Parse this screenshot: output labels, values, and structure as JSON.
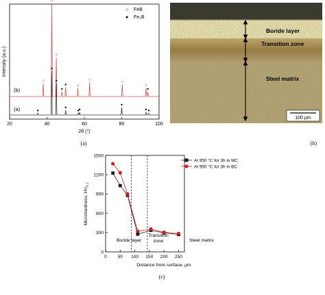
{
  "chart_data": [
    {
      "type": "line",
      "panel_label": "(a)",
      "xlabel": "2θ (°)",
      "ylabel": "Intensity (a.u.)",
      "xlim": [
        20,
        100
      ],
      "x_ticks": [
        "20",
        "40",
        "60",
        "80",
        "100"
      ],
      "legend": [
        {
          "symbol": "○",
          "name": "FeB"
        },
        {
          "symbol": "●",
          "name": "Fe₂B"
        }
      ],
      "legend_position": "top-right",
      "series": [
        {
          "name": "(b)",
          "color": "#e05050",
          "peaks": [
            {
              "x": 38.0,
              "h": 0.14,
              "mark": "○"
            },
            {
              "x": 42.6,
              "h": 1.0,
              "mark": "○"
            },
            {
              "x": 45.0,
              "h": 0.42,
              "mark": "○"
            },
            {
              "x": 48.0,
              "h": 0.05,
              "mark": "●"
            },
            {
              "x": 50.0,
              "h": 0.1,
              "mark": "●"
            },
            {
              "x": 56.5,
              "h": 0.09,
              "mark": "○"
            },
            {
              "x": 62.8,
              "h": 0.15,
              "mark": "○"
            },
            {
              "x": 80.3,
              "h": 0.13,
              "mark": "○"
            },
            {
              "x": 93.0,
              "h": 0.09,
              "mark": "○"
            },
            {
              "x": 94.0,
              "h": 0.05,
              "mark": "●"
            }
          ]
        },
        {
          "name": "(a)",
          "color": "#333333",
          "peaks": [
            {
              "x": 35.1,
              "h": 0.02,
              "mark": "●"
            },
            {
              "x": 42.5,
              "h": 0.47,
              "mark": "●"
            },
            {
              "x": 45.0,
              "h": 0.34,
              "mark": "●"
            },
            {
              "x": 50.0,
              "h": 0.05,
              "mark": "●"
            },
            {
              "x": 56.7,
              "h": 0.02,
              "mark": "●"
            },
            {
              "x": 57.5,
              "h": 0.03,
              "mark": "●"
            },
            {
              "x": 80.0,
              "h": 0.08,
              "mark": "●"
            },
            {
              "x": 93.0,
              "h": 0.03,
              "mark": "●"
            },
            {
              "x": 94.5,
              "h": 0.02,
              "mark": "●"
            }
          ]
        }
      ]
    },
    {
      "type": "line",
      "panel_label": "(c)",
      "xlabel": "Distance from surface, μm",
      "ylabel": "Microhardness, HV",
      "ylabel_sub": "0.1",
      "xlim": [
        0,
        270
      ],
      "ylim": [
        0,
        1500
      ],
      "x_ticks": [
        0,
        50,
        100,
        150,
        200,
        250
      ],
      "y_ticks": [
        0,
        300,
        600,
        900,
        1200,
        1500
      ],
      "boundaries": [
        88,
        143
      ],
      "zones": [
        "Boride layer",
        "Transition\nzone",
        "Steel matrix"
      ],
      "legend_position": "top-right",
      "series": [
        {
          "name": "At 950 °C for 3h in MC",
          "color": "#1a1a1a",
          "marker": "square",
          "x": [
            25,
            50,
            75,
            110,
            155,
            200,
            250
          ],
          "y": [
            1225,
            1030,
            880,
            275,
            335,
            295,
            270
          ]
        },
        {
          "name": "At 950 °C for 3h in BC",
          "color": "#d02020",
          "marker": "circle",
          "x": [
            25,
            50,
            75,
            110,
            155,
            200,
            250
          ],
          "y": [
            1370,
            1230,
            900,
            320,
            355,
            305,
            285
          ]
        }
      ]
    }
  ],
  "micrograph": {
    "panel_label": "(b)",
    "labels": {
      "boride": "Boride layer",
      "transition": "Transition zone",
      "steel": "Steel matrix",
      "scale": "100 μm"
    },
    "colors": {
      "mount": "#3a3a30",
      "boride": "#f0eab8",
      "transition": "#a88a48",
      "steel": "#b8a878"
    }
  }
}
